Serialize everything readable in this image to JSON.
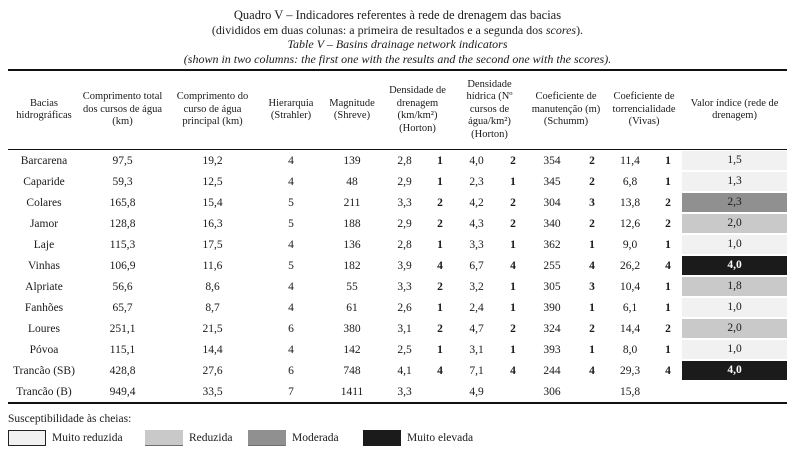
{
  "title": {
    "line1": "Quadro V – Indicadores referentes à rede de drenagem das bacias",
    "line2_prefix": "(divididos em duas colunas: a primeira de resultados e a segunda dos ",
    "line2_italic": "scores",
    "line2_suffix": ").",
    "line3": "Table V – Basins drainage network indicators",
    "line4": "(shown in two columns: the first one with the results and the second one with the scores)."
  },
  "table": {
    "headers": [
      "Bacias hidrográficas",
      "Comprimento total dos cursos de água (km)",
      "Comprimento do curso de água principal (km)",
      "Hierarquia (Strahler)",
      "Magnitude (Shreve)",
      "Densidade de drenagem (km/km²) (Horton)",
      "Densidade hídrica (Nº cursos de água/km²) (Horton)",
      "Coeficiente de manutenção (m) (Schumm)",
      "Coeficiente de torrencialidade (Vivas)",
      "Valor índice (rede de drenagem)"
    ],
    "rows": [
      {
        "name": "Barcarena",
        "comp_total": "97,5",
        "comp_principal": "19,2",
        "hierarquia": "4",
        "magnitude": "139",
        "dd": "2,8",
        "dd_s": "1",
        "dh": "4,0",
        "dh_s": "2",
        "cm": "354",
        "cm_s": "2",
        "ct": "11,4",
        "ct_s": "1",
        "valor": "1,5",
        "sus": 0
      },
      {
        "name": "Caparide",
        "comp_total": "59,3",
        "comp_principal": "12,5",
        "hierarquia": "4",
        "magnitude": "48",
        "dd": "2,9",
        "dd_s": "1",
        "dh": "2,3",
        "dh_s": "1",
        "cm": "345",
        "cm_s": "2",
        "ct": "6,8",
        "ct_s": "1",
        "valor": "1,3",
        "sus": 0
      },
      {
        "name": "Colares",
        "comp_total": "165,8",
        "comp_principal": "15,4",
        "hierarquia": "5",
        "magnitude": "211",
        "dd": "3,3",
        "dd_s": "2",
        "dh": "4,2",
        "dh_s": "2",
        "cm": "304",
        "cm_s": "3",
        "ct": "13,8",
        "ct_s": "2",
        "valor": "2,3",
        "sus": 2
      },
      {
        "name": "Jamor",
        "comp_total": "128,8",
        "comp_principal": "16,3",
        "hierarquia": "5",
        "magnitude": "188",
        "dd": "2,9",
        "dd_s": "2",
        "dh": "4,3",
        "dh_s": "2",
        "cm": "340",
        "cm_s": "2",
        "ct": "12,6",
        "ct_s": "2",
        "valor": "2,0",
        "sus": 1
      },
      {
        "name": "Laje",
        "comp_total": "115,3",
        "comp_principal": "17,5",
        "hierarquia": "4",
        "magnitude": "136",
        "dd": "2,8",
        "dd_s": "1",
        "dh": "3,3",
        "dh_s": "1",
        "cm": "362",
        "cm_s": "1",
        "ct": "9,0",
        "ct_s": "1",
        "valor": "1,0",
        "sus": 0
      },
      {
        "name": "Vinhas",
        "comp_total": "106,9",
        "comp_principal": "11,6",
        "hierarquia": "5",
        "magnitude": "182",
        "dd": "3,9",
        "dd_s": "4",
        "dh": "6,7",
        "dh_s": "4",
        "cm": "255",
        "cm_s": "4",
        "ct": "26,2",
        "ct_s": "4",
        "valor": "4,0",
        "sus": 3
      },
      {
        "name": "Alpriate",
        "comp_total": "56,6",
        "comp_principal": "8,6",
        "hierarquia": "4",
        "magnitude": "55",
        "dd": "3,3",
        "dd_s": "2",
        "dh": "3,2",
        "dh_s": "1",
        "cm": "305",
        "cm_s": "3",
        "ct": "10,4",
        "ct_s": "1",
        "valor": "1,8",
        "sus": 1
      },
      {
        "name": "Fanhões",
        "comp_total": "65,7",
        "comp_principal": "8,7",
        "hierarquia": "4",
        "magnitude": "61",
        "dd": "2,6",
        "dd_s": "1",
        "dh": "2,4",
        "dh_s": "1",
        "cm": "390",
        "cm_s": "1",
        "ct": "6,1",
        "ct_s": "1",
        "valor": "1,0",
        "sus": 0
      },
      {
        "name": "Loures",
        "comp_total": "251,1",
        "comp_principal": "21,5",
        "hierarquia": "6",
        "magnitude": "380",
        "dd": "3,1",
        "dd_s": "2",
        "dh": "4,7",
        "dh_s": "2",
        "cm": "324",
        "cm_s": "2",
        "ct": "14,4",
        "ct_s": "2",
        "valor": "2,0",
        "sus": 1
      },
      {
        "name": "Póvoa",
        "comp_total": "115,1",
        "comp_principal": "14,4",
        "hierarquia": "4",
        "magnitude": "142",
        "dd": "2,5",
        "dd_s": "1",
        "dh": "3,1",
        "dh_s": "1",
        "cm": "393",
        "cm_s": "1",
        "ct": "8,0",
        "ct_s": "1",
        "valor": "1,0",
        "sus": 0
      },
      {
        "name": "Trancão (SB)",
        "comp_total": "428,8",
        "comp_principal": "27,6",
        "hierarquia": "6",
        "magnitude": "748",
        "dd": "4,1",
        "dd_s": "4",
        "dh": "7,1",
        "dh_s": "4",
        "cm": "244",
        "cm_s": "4",
        "ct": "29,3",
        "ct_s": "4",
        "valor": "4,0",
        "sus": 3
      },
      {
        "name": "Trancão (B)",
        "comp_total": "949,4",
        "comp_principal": "33,5",
        "hierarquia": "7",
        "magnitude": "1411",
        "dd": "3,3",
        "dd_s": "",
        "dh": "4,9",
        "dh_s": "",
        "cm": "306",
        "cm_s": "",
        "ct": "15,8",
        "ct_s": "",
        "valor": "",
        "sus": null
      }
    ]
  },
  "legend": {
    "title": "Susceptibilidade às cheias:",
    "items": [
      {
        "label": "Muito reduzida",
        "color": "#f1f1f1"
      },
      {
        "label": "Reduzida",
        "color": "#c9c9c9"
      },
      {
        "label": "Moderada",
        "color": "#909090"
      },
      {
        "label": "Muito elevada",
        "color": "#1b1b1b"
      }
    ]
  }
}
